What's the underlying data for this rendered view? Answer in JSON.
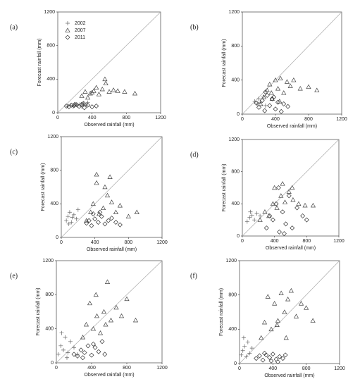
{
  "chart_data": [
    {
      "type": "scatter",
      "panel_label": "(a)",
      "x_label": "Observed rainfall (mm)",
      "y_label": "Forecast rainfall (mm)",
      "xlim": [
        0,
        1200
      ],
      "ylim": [
        0,
        1200
      ],
      "xticks": [
        0,
        400,
        800,
        1200
      ],
      "yticks": [
        0,
        400,
        800,
        1200
      ],
      "legend": "upper left",
      "diagonal": true,
      "series": [
        {
          "name": "2002",
          "marker": "plus",
          "color": "#666666",
          "x": [
            120,
            150,
            180,
            200,
            230,
            260,
            300,
            330,
            350,
            280
          ],
          "values": [
            80,
            90,
            70,
            95,
            85,
            100,
            110,
            90,
            120,
            75
          ]
        },
        {
          "name": "2007",
          "marker": "triangle",
          "color": "#444444",
          "x": [
            280,
            320,
            350,
            380,
            420,
            450,
            480,
            520,
            550,
            600,
            650,
            700,
            780,
            900,
            560,
            400
          ],
          "values": [
            200,
            250,
            180,
            230,
            260,
            300,
            220,
            280,
            400,
            250,
            270,
            260,
            250,
            230,
            350,
            240
          ]
        },
        {
          "name": "2011",
          "marker": "diamond",
          "color": "#333333",
          "x": [
            100,
            130,
            160,
            190,
            220,
            250,
            280,
            310,
            350,
            400,
            450,
            200,
            300
          ],
          "values": [
            80,
            70,
            90,
            85,
            95,
            75,
            100,
            60,
            90,
            70,
            80,
            100,
            110
          ]
        }
      ]
    },
    {
      "type": "scatter",
      "panel_label": "(b)",
      "x_label": "Observed rainfall (mm)",
      "y_label": "Forecast rainfall (mm)",
      "xlim": [
        0,
        1200
      ],
      "ylim": [
        0,
        1200
      ],
      "xticks": [
        0,
        400,
        800,
        1200
      ],
      "yticks": [
        0,
        400,
        800,
        1200
      ],
      "diagonal": true,
      "series": [
        {
          "marker": "plus",
          "color": "#666666",
          "x": [
            150,
            180,
            200,
            220,
            250,
            280
          ],
          "values": [
            150,
            120,
            180,
            140,
            200,
            100
          ]
        },
        {
          "marker": "triangle",
          "color": "#444444",
          "x": [
            220,
            260,
            300,
            330,
            360,
            400,
            430,
            460,
            500,
            540,
            580,
            620,
            700,
            800,
            900,
            350,
            450
          ],
          "values": [
            120,
            200,
            280,
            350,
            180,
            400,
            300,
            420,
            250,
            380,
            330,
            400,
            300,
            320,
            280,
            250,
            150
          ]
        },
        {
          "marker": "diamond",
          "color": "#333333",
          "x": [
            170,
            200,
            240,
            270,
            300,
            330,
            360,
            400,
            430,
            470,
            500,
            550,
            280,
            380
          ],
          "values": [
            130,
            80,
            160,
            40,
            220,
            100,
            180,
            60,
            140,
            30,
            120,
            90,
            260,
            200
          ]
        }
      ]
    },
    {
      "type": "scatter",
      "panel_label": "(c)",
      "x_label": "Observed rainfall (mm)",
      "y_label": "Forecast rainfall (mm)",
      "xlim": [
        0,
        1200
      ],
      "ylim": [
        0,
        1200
      ],
      "xticks": [
        0,
        400,
        800,
        1200
      ],
      "yticks": [
        0,
        400,
        800,
        1200
      ],
      "diagonal": true,
      "series": [
        {
          "marker": "plus",
          "color": "#666666",
          "x": [
            60,
            80,
            100,
            120,
            150,
            180,
            200,
            90,
            130
          ],
          "values": [
            200,
            250,
            300,
            180,
            270,
            220,
            330,
            160,
            240
          ]
        },
        {
          "marker": "triangle",
          "color": "#444444",
          "x": [
            300,
            350,
            380,
            420,
            450,
            500,
            550,
            600,
            650,
            700,
            800,
            900,
            420,
            520,
            580
          ],
          "values": [
            200,
            300,
            400,
            750,
            280,
            350,
            500,
            420,
            300,
            380,
            250,
            300,
            650,
            600,
            720
          ]
        },
        {
          "marker": "diamond",
          "color": "#333333",
          "x": [
            300,
            330,
            360,
            400,
            440,
            480,
            520,
            560,
            600,
            650,
            700,
            380,
            460
          ],
          "values": [
            170,
            200,
            140,
            220,
            180,
            250,
            160,
            200,
            230,
            180,
            150,
            280,
            300
          ]
        }
      ]
    },
    {
      "type": "scatter",
      "panel_label": "(d)",
      "x_label": "Observed rainfall (mm)",
      "y_label": "Forecast rainfall (mm)",
      "xlim": [
        0,
        1200
      ],
      "ylim": [
        0,
        1200
      ],
      "xticks": [
        0,
        400,
        800,
        1200
      ],
      "yticks": [
        0,
        400,
        800,
        1200
      ],
      "diagonal": true,
      "series": [
        {
          "marker": "plus",
          "color": "#666666",
          "x": [
            60,
            90,
            120,
            150,
            180,
            220,
            100
          ],
          "values": [
            180,
            230,
            260,
            200,
            280,
            250,
            300
          ]
        },
        {
          "marker": "triangle",
          "color": "#444444",
          "x": [
            220,
            280,
            330,
            380,
            430,
            480,
            530,
            580,
            630,
            700,
            780,
            880,
            400,
            500,
            620
          ],
          "values": [
            200,
            300,
            250,
            400,
            350,
            500,
            420,
            550,
            450,
            400,
            380,
            380,
            600,
            650,
            600
          ]
        },
        {
          "marker": "diamond",
          "color": "#333333",
          "x": [
            300,
            340,
            380,
            420,
            460,
            500,
            540,
            580,
            620,
            680,
            750,
            800,
            450,
            520
          ],
          "values": [
            100,
            250,
            200,
            400,
            50,
            300,
            150,
            500,
            100,
            350,
            250,
            200,
            600,
            30
          ]
        }
      ]
    },
    {
      "type": "scatter",
      "panel_label": "(e)",
      "x_label": "Observed rainfall (mm)",
      "y_label": "Forecast rainfall (mm)",
      "xlim": [
        0,
        1200
      ],
      "ylim": [
        0,
        1200
      ],
      "xticks": [
        0,
        400,
        800,
        1200
      ],
      "yticks": [
        0,
        400,
        800,
        1200
      ],
      "diagonal": true,
      "series": [
        {
          "marker": "plus",
          "color": "#666666",
          "x": [
            20,
            50,
            80,
            100,
            130,
            160,
            200,
            240,
            60,
            120
          ],
          "values": [
            100,
            200,
            150,
            300,
            120,
            250,
            180,
            100,
            350,
            60
          ]
        },
        {
          "marker": "triangle",
          "color": "#444444",
          "x": [
            300,
            340,
            380,
            420,
            460,
            500,
            540,
            580,
            620,
            680,
            740,
            800,
            900,
            450,
            560
          ],
          "values": [
            300,
            450,
            700,
            400,
            550,
            350,
            600,
            950,
            500,
            650,
            550,
            750,
            500,
            800,
            450
          ]
        },
        {
          "marker": "diamond",
          "color": "#333333",
          "x": [
            200,
            240,
            280,
            320,
            360,
            400,
            440,
            480,
            520,
            550,
            300,
            420
          ],
          "values": [
            100,
            80,
            150,
            120,
            200,
            90,
            180,
            130,
            250,
            100,
            60,
            220
          ]
        }
      ]
    },
    {
      "type": "scatter",
      "panel_label": "(f)",
      "x_label": "Observed rainfall (mm)",
      "y_label": "Forecast rainfall (mm)",
      "xlim": [
        0,
        1200
      ],
      "ylim": [
        0,
        1200
      ],
      "xticks": [
        0,
        400,
        800,
        1200
      ],
      "yticks": [
        0,
        400,
        800,
        1200
      ],
      "diagonal": true,
      "series": [
        {
          "marker": "plus",
          "color": "#666666",
          "x": [
            20,
            40,
            60,
            80,
            100,
            120,
            150,
            50
          ],
          "values": [
            100,
            150,
            200,
            80,
            250,
            120,
            180,
            300
          ]
        },
        {
          "marker": "triangle",
          "color": "#444444",
          "x": [
            260,
            300,
            340,
            380,
            420,
            460,
            500,
            540,
            580,
            620,
            680,
            740,
            800,
            880,
            450,
            560
          ],
          "values": [
            300,
            480,
            780,
            400,
            700,
            500,
            820,
            600,
            750,
            850,
            550,
            700,
            650,
            500,
            450,
            300
          ]
        },
        {
          "marker": "diamond",
          "color": "#333333",
          "x": [
            200,
            240,
            280,
            320,
            360,
            400,
            440,
            480,
            520,
            550,
            300,
            380,
            460
          ],
          "values": [
            60,
            90,
            40,
            100,
            70,
            110,
            50,
            80,
            60,
            100,
            120,
            30,
            20
          ]
        }
      ]
    }
  ]
}
